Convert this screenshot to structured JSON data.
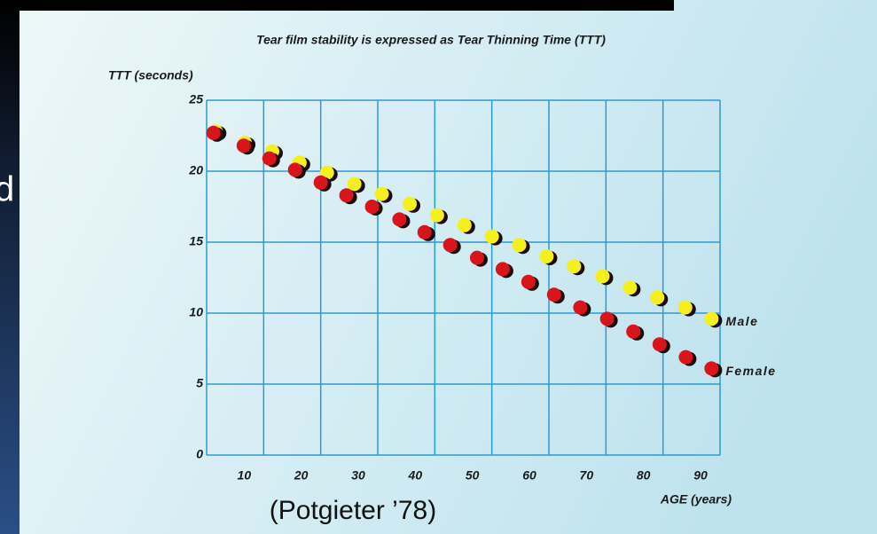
{
  "slide_text_fragment": "d",
  "source_note": "(Potgieter ’78)",
  "chart_data": {
    "type": "scatter",
    "title": "Tear film stability is expressed as Tear Thinning Time (TTT)",
    "y_label": "TTT  (seconds)",
    "x_label": "AGE (years)",
    "xlim": [
      0,
      90
    ],
    "ylim": [
      0,
      25
    ],
    "xticks": [
      10,
      20,
      30,
      40,
      50,
      60,
      70,
      80,
      90
    ],
    "yticks": [
      0,
      5,
      10,
      15,
      20,
      25
    ],
    "grid": true,
    "series": [
      {
        "name": "Male",
        "color": "#f6ef1e",
        "x": [
          1.6,
          6.7,
          11.5,
          16.3,
          21.1,
          25.9,
          30.7,
          35.6,
          40.4,
          45.2,
          50.0,
          54.8,
          59.6,
          64.4,
          69.4,
          74.2,
          79.0,
          83.9,
          88.5
        ],
        "values": [
          22.8,
          22.0,
          21.4,
          20.6,
          19.9,
          19.1,
          18.4,
          17.7,
          16.9,
          16.2,
          15.4,
          14.8,
          14.0,
          13.3,
          12.6,
          11.8,
          11.1,
          10.4,
          9.6
        ]
      },
      {
        "name": "Female",
        "color": "#d8141c",
        "x": [
          1.2,
          6.5,
          11.0,
          15.5,
          20.0,
          24.5,
          29.0,
          33.8,
          38.2,
          42.7,
          47.4,
          51.9,
          56.4,
          60.9,
          65.5,
          70.2,
          74.8,
          79.4,
          84.0,
          88.5
        ],
        "values": [
          22.7,
          21.8,
          20.9,
          20.1,
          19.2,
          18.3,
          17.5,
          16.6,
          15.7,
          14.8,
          13.9,
          13.1,
          12.2,
          11.3,
          10.4,
          9.6,
          8.7,
          7.8,
          6.9,
          6.1
        ]
      }
    ]
  }
}
